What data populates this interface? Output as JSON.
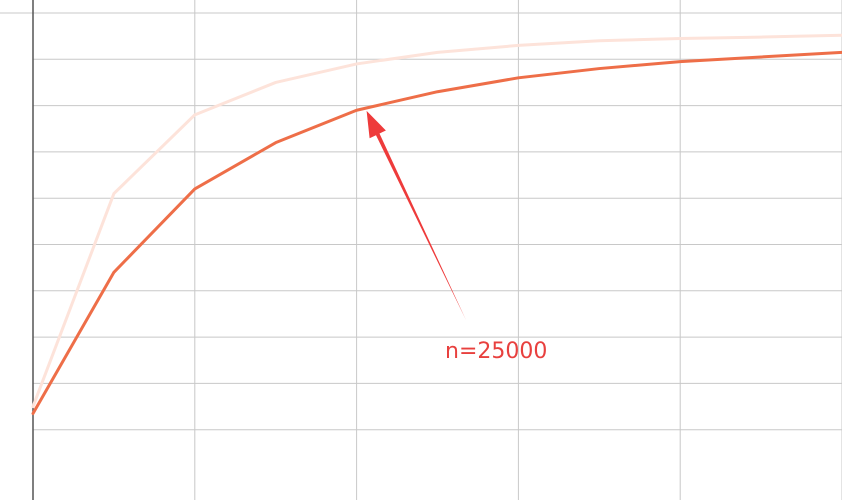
{
  "chart_data": {
    "type": "line",
    "title": "",
    "xlabel": "",
    "ylabel": "",
    "grid": true,
    "x": [
      0,
      1,
      2,
      3,
      4,
      5,
      6,
      7,
      8,
      9,
      10
    ],
    "xlim": [
      0,
      10
    ],
    "ylim": [
      0,
      10
    ],
    "series": [
      {
        "color": "#ee6e48",
        "values": [
          1.35,
          4.4,
          6.2,
          7.2,
          7.9,
          8.3,
          8.6,
          8.8,
          8.95,
          9.05,
          9.15
        ]
      },
      {
        "color": "#fde3da",
        "values": [
          1.5,
          6.1,
          7.8,
          8.5,
          8.9,
          9.15,
          9.3,
          9.4,
          9.45,
          9.48,
          9.52
        ]
      }
    ],
    "annotations": [
      {
        "text": "n=25000",
        "color": "#e8403e",
        "points_to": {
          "x": 4,
          "y": 7.8
        }
      }
    ]
  },
  "colors": {
    "grid": "#c8c8c8",
    "axis": "#555555",
    "arrow": "#ee3b3b"
  }
}
